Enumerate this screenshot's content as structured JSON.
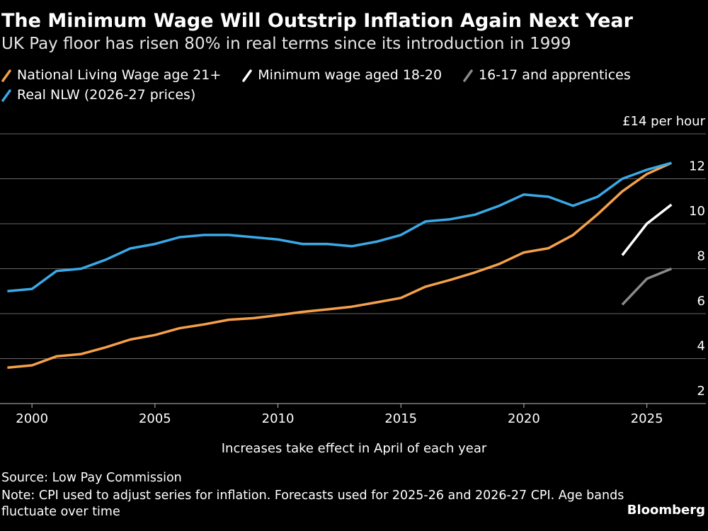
{
  "chart_data": {
    "type": "line",
    "title": "The Minimum Wage Will Outstrip Inflation Again Next Year",
    "subtitle": "UK Pay floor has risen 80% in real terms since its introduction in 1999",
    "x_label": "Increases take effect in April of each year",
    "source": "Source: Low Pay Commission",
    "note": "Note: CPI used to adjust series for inflation. Forecasts used for 2025-26 and 2026-27 CPI. Age bands fluctuate over time",
    "brand": "Bloomberg",
    "x": [
      1999,
      2000,
      2001,
      2002,
      2003,
      2004,
      2005,
      2006,
      2007,
      2008,
      2009,
      2010,
      2011,
      2012,
      2013,
      2014,
      2015,
      2016,
      2017,
      2018,
      2019,
      2020,
      2021,
      2022,
      2023,
      2024,
      2025,
      2026
    ],
    "series": [
      {
        "name": "National Living Wage age 21+",
        "color": "#f5a04a",
        "values": [
          3.6,
          3.7,
          4.1,
          4.2,
          4.5,
          4.85,
          5.05,
          5.35,
          5.52,
          5.73,
          5.8,
          5.93,
          6.08,
          6.19,
          6.31,
          6.5,
          6.7,
          7.2,
          7.5,
          7.83,
          8.21,
          8.72,
          8.91,
          9.5,
          10.42,
          11.44,
          12.21,
          12.71
        ]
      },
      {
        "name": "Minimum wage aged 18-20",
        "color": "#ffffff",
        "values": [
          null,
          null,
          null,
          null,
          null,
          null,
          null,
          null,
          null,
          null,
          null,
          null,
          null,
          null,
          null,
          null,
          null,
          null,
          null,
          null,
          null,
          null,
          null,
          null,
          null,
          8.6,
          10.0,
          10.85
        ]
      },
      {
        "name": "16-17 and apprentices",
        "color": "#8a8a8a",
        "values": [
          null,
          null,
          null,
          null,
          null,
          null,
          null,
          null,
          null,
          null,
          null,
          null,
          null,
          null,
          null,
          null,
          null,
          null,
          null,
          null,
          null,
          null,
          null,
          null,
          null,
          6.4,
          7.55,
          8.0
        ]
      },
      {
        "name": "Real NLW (2026-27 prices)",
        "color": "#3aa9e6",
        "values": [
          7.0,
          7.1,
          7.9,
          8.0,
          8.4,
          8.9,
          9.1,
          9.4,
          9.5,
          9.5,
          9.4,
          9.3,
          9.1,
          9.1,
          9.0,
          9.2,
          9.5,
          10.1,
          10.2,
          10.4,
          10.8,
          11.3,
          11.2,
          10.8,
          11.2,
          12.0,
          12.4,
          12.71
        ]
      }
    ],
    "xlim": [
      1998.7,
      2027.4
    ],
    "xticks": [
      2000,
      2005,
      2010,
      2015,
      2020,
      2025
    ],
    "ylim": [
      2,
      14
    ],
    "yticks": [
      2,
      4,
      6,
      8,
      10,
      12,
      {
        "value": 14,
        "label": "£14 per hour"
      }
    ],
    "grid": true
  }
}
